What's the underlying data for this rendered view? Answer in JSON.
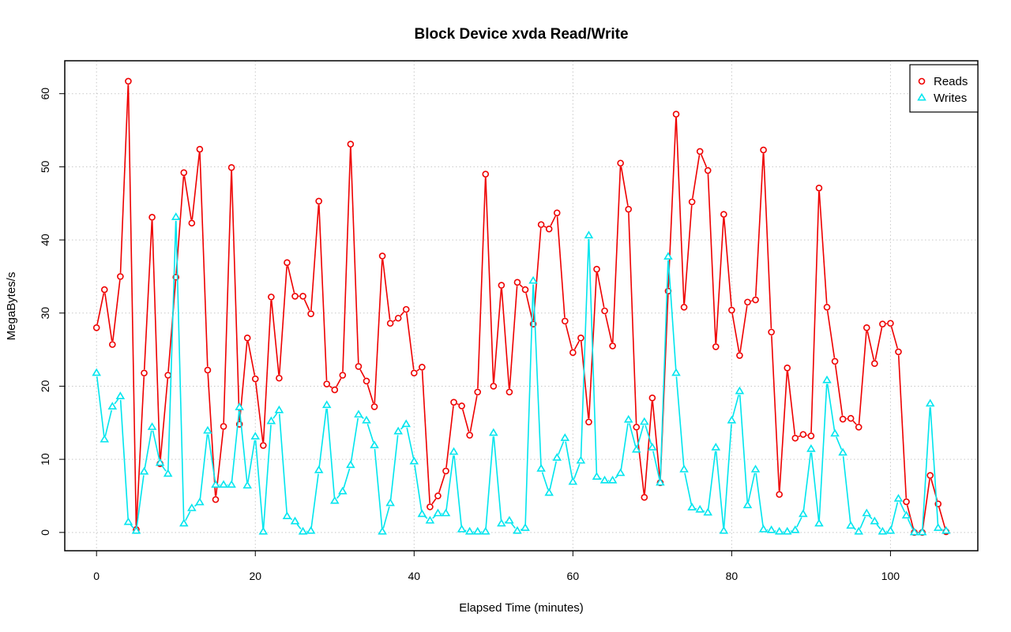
{
  "chart_data": {
    "type": "line",
    "title": "Block Device xvda Read/Write",
    "xlabel": "Elapsed Time (minutes)",
    "ylabel": "MegaBytes/s",
    "xlim": [
      -4,
      111
    ],
    "ylim": [
      -2.5,
      64.5
    ],
    "xticks": [
      0,
      20,
      40,
      60,
      80,
      100
    ],
    "yticks": [
      0,
      10,
      20,
      30,
      40,
      50,
      60
    ],
    "grid": true,
    "legend_position": "top-right",
    "x": [
      0,
      1,
      2,
      3,
      4,
      5,
      6,
      7,
      8,
      9,
      10,
      11,
      12,
      13,
      14,
      15,
      16,
      17,
      18,
      19,
      20,
      21,
      22,
      23,
      24,
      25,
      26,
      27,
      28,
      29,
      30,
      31,
      32,
      33,
      34,
      35,
      36,
      37,
      38,
      39,
      40,
      41,
      42,
      43,
      44,
      45,
      46,
      47,
      48,
      49,
      50,
      51,
      52,
      53,
      54,
      55,
      56,
      57,
      58,
      59,
      60,
      61,
      62,
      63,
      64,
      65,
      66,
      67,
      68,
      69,
      70,
      71,
      72,
      73,
      74,
      75,
      76,
      77,
      78,
      79,
      80,
      81,
      82,
      83,
      84,
      85,
      86,
      87,
      88,
      89,
      90,
      91,
      92,
      93,
      94,
      95,
      96,
      97,
      98,
      99,
      100,
      101,
      102,
      103,
      104,
      105,
      106,
      107
    ],
    "series": [
      {
        "name": "Reads",
        "color": "#ee0000",
        "marker": "circle",
        "values": [
          28,
          33.2,
          25.7,
          35,
          61.7,
          0.4,
          21.8,
          43.1,
          9.4,
          21.5,
          34.9,
          49.2,
          42.3,
          52.4,
          22.2,
          4.5,
          14.5,
          49.9,
          14.8,
          26.6,
          21,
          11.9,
          32.2,
          21.1,
          36.9,
          32.3,
          32.3,
          29.9,
          45.3,
          20.3,
          19.5,
          21.5,
          53.1,
          22.7,
          20.7,
          17.2,
          37.8,
          28.6,
          29.3,
          30.5,
          21.8,
          22.6,
          3.5,
          5,
          8.4,
          17.8,
          17.3,
          13.3,
          19.2,
          49,
          20,
          33.8,
          19.2,
          34.2,
          33.2,
          28.5,
          42.1,
          41.5,
          43.7,
          28.9,
          24.6,
          26.6,
          15.1,
          36,
          30.3,
          25.5,
          50.5,
          44.2,
          14.4,
          4.8,
          18.4,
          6.8,
          33,
          57.2,
          30.8,
          45.2,
          52.1,
          49.5,
          25.4,
          43.5,
          30.4,
          24.2,
          31.5,
          31.8,
          52.3,
          27.4,
          5.2,
          22.5,
          12.9,
          13.4,
          13.2,
          47.1,
          30.8,
          23.4,
          15.5,
          15.6,
          14.4,
          28,
          23.1,
          28.5,
          28.6,
          24.7,
          4.2,
          0,
          0,
          7.8,
          3.9,
          0.1
        ]
      },
      {
        "name": "Writes",
        "color": "#00e5ee",
        "marker": "triangle",
        "values": [
          21.8,
          12.7,
          17.2,
          18.6,
          1.4,
          0.2,
          8.3,
          14.4,
          9.5,
          8,
          43.1,
          1.2,
          3.3,
          4.1,
          13.9,
          6.5,
          6.5,
          6.5,
          17.1,
          6.4,
          13.1,
          0.1,
          15.2,
          16.7,
          2.2,
          1.5,
          0.1,
          0.2,
          8.5,
          17.4,
          4.3,
          5.6,
          9.2,
          16.1,
          15.3,
          11.9,
          0.1,
          4,
          13.8,
          14.8,
          9.7,
          2.5,
          1.6,
          2.6,
          2.6,
          11,
          0.4,
          0.1,
          0.1,
          0.1,
          13.6,
          1.2,
          1.6,
          0.2,
          0.6,
          34.4,
          8.7,
          5.4,
          10.2,
          12.9,
          6.9,
          9.8,
          40.6,
          7.6,
          7.1,
          7.1,
          8.1,
          15.4,
          11.3,
          15.1,
          11.6,
          6.8,
          37.7,
          21.8,
          8.6,
          3.4,
          3.1,
          2.7,
          11.6,
          0.2,
          15.3,
          19.3,
          3.7,
          8.6,
          0.4,
          0.3,
          0.1,
          0.1,
          0.3,
          2.5,
          11.4,
          1.2,
          20.8,
          13.5,
          10.9,
          0.9,
          0.1,
          2.6,
          1.5,
          0.1,
          0.2,
          4.6,
          2.3,
          0,
          0,
          17.6,
          0.6,
          0.2
        ]
      }
    ]
  }
}
